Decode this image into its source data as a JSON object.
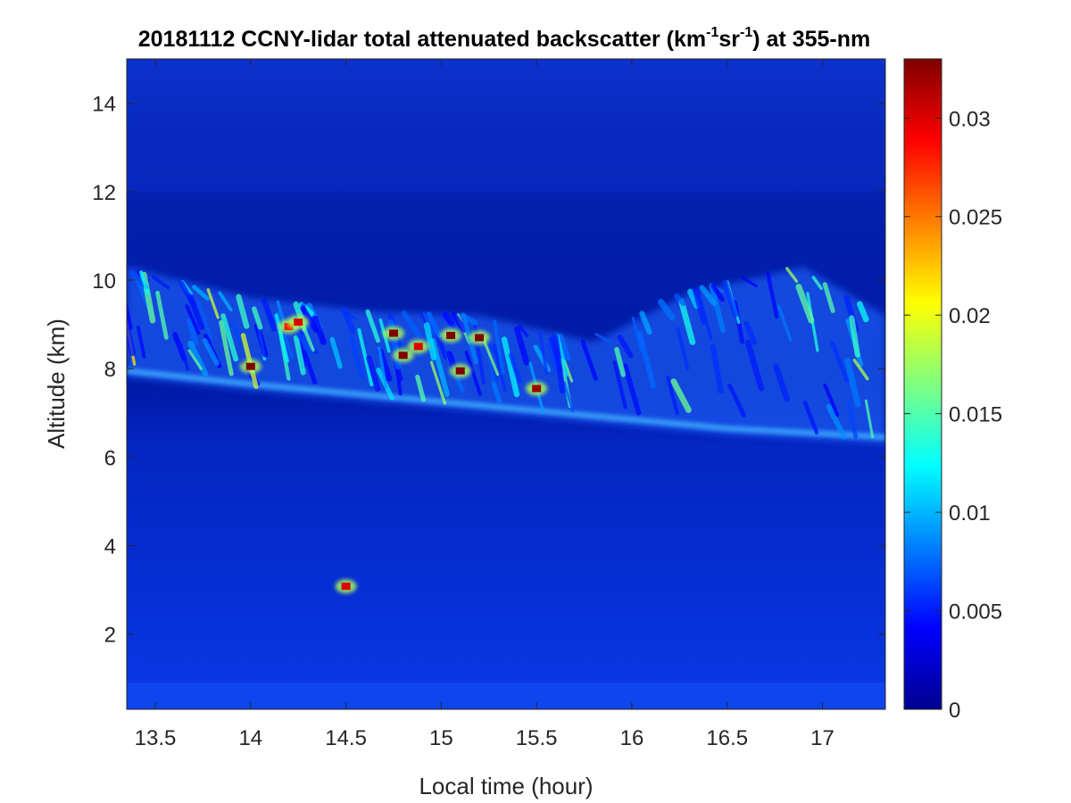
{
  "chart_data": {
    "type": "heatmap",
    "title": {
      "prefix": "20181112 CCNY-lidar total attenuated backscatter (km",
      "sup1": "-1",
      "middle": "sr",
      "sup2": "-1",
      "suffix": ") at 355-nm"
    },
    "xlabel": "Local time (hour)",
    "ylabel": "Altitude (km)",
    "xlim": [
      13.35,
      17.33
    ],
    "ylim": [
      0.3,
      15
    ],
    "xticks": [
      13.5,
      14,
      14.5,
      15,
      15.5,
      16,
      16.5,
      17
    ],
    "xtick_labels": [
      "13.5",
      "14",
      "14.5",
      "15",
      "15.5",
      "16",
      "16.5",
      "17"
    ],
    "yticks": [
      2,
      4,
      6,
      8,
      10,
      12,
      14
    ],
    "ytick_labels": [
      "2",
      "4",
      "6",
      "8",
      "10",
      "12",
      "14"
    ],
    "colorbar": {
      "colormap": "jet",
      "range": [
        0,
        0.033
      ],
      "ticks": [
        0,
        0.005,
        0.01,
        0.015,
        0.02,
        0.025,
        0.03
      ],
      "tick_labels": [
        "0",
        "0.005",
        "0.01",
        "0.015",
        "0.02",
        "0.025",
        "0.03"
      ]
    },
    "cloud_base_km": [
      {
        "t": 13.35,
        "alt": 7.8
      },
      {
        "t": 14.0,
        "alt": 7.5
      },
      {
        "t": 15.0,
        "alt": 7.1
      },
      {
        "t": 16.0,
        "alt": 6.7
      },
      {
        "t": 16.5,
        "alt": 6.5
      },
      {
        "t": 17.33,
        "alt": 6.3
      }
    ],
    "cirrus_top_km": [
      {
        "t": 13.35,
        "alt": 10.3
      },
      {
        "t": 14.0,
        "alt": 9.6
      },
      {
        "t": 14.6,
        "alt": 9.3
      },
      {
        "t": 15.2,
        "alt": 9.2
      },
      {
        "t": 15.8,
        "alt": 8.6
      },
      {
        "t": 16.3,
        "alt": 9.7
      },
      {
        "t": 16.9,
        "alt": 10.3
      },
      {
        "t": 17.33,
        "alt": 9.2
      }
    ],
    "boundary_layer_top_km": 0.9,
    "hotspots": [
      {
        "t": 14.0,
        "alt": 8.05,
        "value": 0.033
      },
      {
        "t": 14.2,
        "alt": 8.95,
        "value": 0.028
      },
      {
        "t": 14.25,
        "alt": 9.05,
        "value": 0.03
      },
      {
        "t": 14.75,
        "alt": 8.8,
        "value": 0.033
      },
      {
        "t": 14.8,
        "alt": 8.3,
        "value": 0.033
      },
      {
        "t": 14.88,
        "alt": 8.5,
        "value": 0.03
      },
      {
        "t": 15.05,
        "alt": 8.75,
        "value": 0.033
      },
      {
        "t": 15.1,
        "alt": 7.95,
        "value": 0.033
      },
      {
        "t": 15.2,
        "alt": 8.7,
        "value": 0.033
      },
      {
        "t": 15.5,
        "alt": 7.55,
        "value": 0.032
      },
      {
        "t": 14.5,
        "alt": 3.08,
        "value": 0.03
      }
    ]
  }
}
